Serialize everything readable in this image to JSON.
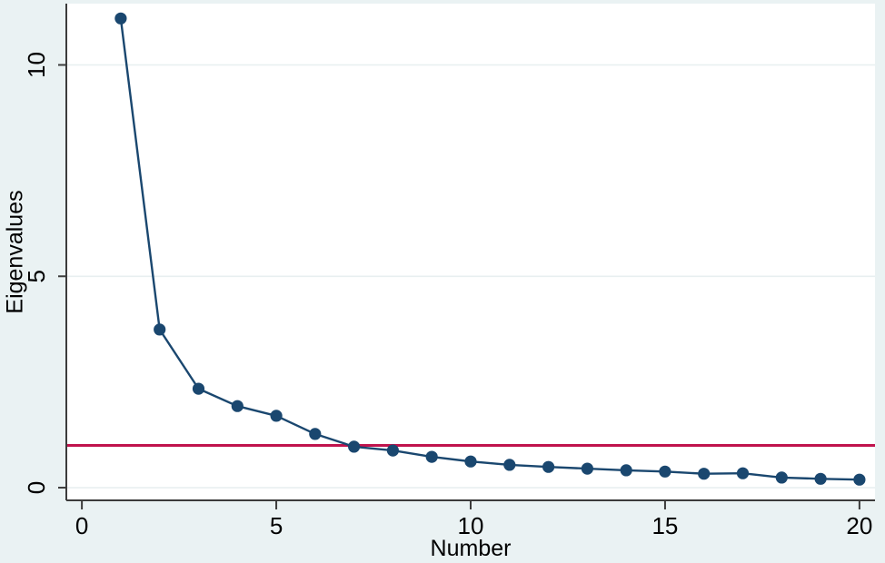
{
  "chart_data": {
    "type": "line",
    "title": "",
    "xlabel": "Number",
    "ylabel": "Eigenvalues",
    "x": [
      1,
      2,
      3,
      4,
      5,
      6,
      7,
      8,
      9,
      10,
      11,
      12,
      13,
      14,
      15,
      16,
      17,
      18,
      19,
      20
    ],
    "series": [
      {
        "name": "Eigenvalues",
        "values": [
          11.1,
          3.74,
          2.34,
          1.93,
          1.7,
          1.27,
          0.97,
          0.88,
          0.73,
          0.62,
          0.54,
          0.49,
          0.45,
          0.41,
          0.38,
          0.33,
          0.34,
          0.24,
          0.21,
          0.19
        ]
      }
    ],
    "reference_line": {
      "y": 1
    },
    "x_ticks": [
      0,
      5,
      10,
      15,
      20
    ],
    "y_ticks": [
      0,
      5,
      10
    ],
    "xlim": [
      -0.4,
      20.4
    ],
    "ylim": [
      -0.3,
      11.45
    ],
    "grid": "horizontal",
    "legend": "none",
    "colors": {
      "series_line": "#1a476f",
      "marker": "#1a476f",
      "reference_line": "#c0134d",
      "outer_background": "#eaf2f3",
      "plot_background": "#ffffff",
      "gridline": "#e8eff0",
      "axis_line": "#3c3c3c",
      "text": "#000000"
    }
  }
}
